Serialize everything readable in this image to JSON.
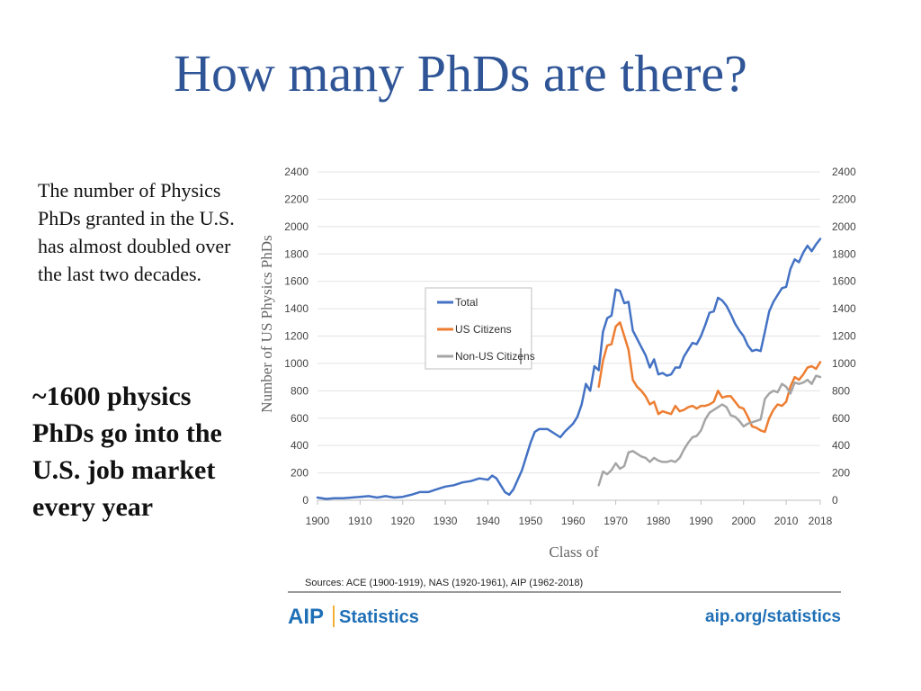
{
  "slide": {
    "title": "How many PhDs are there?",
    "intro": "The number of Physics PhDs granted in the U.S. has almost doubled over the last two decades.",
    "callout": "~1600 physics PhDs go into the U.S. job market every year"
  },
  "footer": {
    "sources": "Sources: ACE (1900-1919), NAS (1920-1961), AIP (1962-2018)",
    "logo_text": "AIP",
    "logo_suffix": "Statistics",
    "url": "aip.org/statistics"
  },
  "colors": {
    "title": "#2f5597",
    "total": "#4472c4",
    "us": "#ed7d31",
    "nonus": "#a5a5a5",
    "brand": "#1f6fb6"
  },
  "chart_data": {
    "type": "line",
    "xlabel": "Class of",
    "ylabel": "Number of US Physics PhDs",
    "xlim": [
      1900,
      2018
    ],
    "ylim": [
      0,
      2400
    ],
    "xticks": [
      "1900",
      "1910",
      "1920",
      "1930",
      "1940",
      "1950",
      "1960",
      "1970",
      "1980",
      "1990",
      "2000",
      "2010",
      "2018"
    ],
    "yticks": [
      "0",
      "200",
      "400",
      "600",
      "800",
      "1000",
      "1200",
      "1400",
      "1600",
      "1800",
      "2000",
      "2200",
      "2400"
    ],
    "grid": true,
    "legend_position": "upper-left-center",
    "series": [
      {
        "name": "Total",
        "color": "#4472c4",
        "points": [
          [
            1900,
            20
          ],
          [
            1902,
            10
          ],
          [
            1904,
            15
          ],
          [
            1906,
            15
          ],
          [
            1908,
            20
          ],
          [
            1910,
            25
          ],
          [
            1912,
            30
          ],
          [
            1914,
            20
          ],
          [
            1916,
            30
          ],
          [
            1918,
            20
          ],
          [
            1920,
            25
          ],
          [
            1922,
            40
          ],
          [
            1924,
            60
          ],
          [
            1926,
            60
          ],
          [
            1928,
            80
          ],
          [
            1930,
            100
          ],
          [
            1932,
            110
          ],
          [
            1934,
            130
          ],
          [
            1936,
            140
          ],
          [
            1938,
            160
          ],
          [
            1940,
            150
          ],
          [
            1941,
            180
          ],
          [
            1942,
            160
          ],
          [
            1943,
            110
          ],
          [
            1944,
            60
          ],
          [
            1945,
            40
          ],
          [
            1946,
            80
          ],
          [
            1948,
            220
          ],
          [
            1950,
            420
          ],
          [
            1951,
            500
          ],
          [
            1952,
            520
          ],
          [
            1954,
            520
          ],
          [
            1956,
            480
          ],
          [
            1957,
            460
          ],
          [
            1958,
            500
          ],
          [
            1960,
            560
          ],
          [
            1961,
            610
          ],
          [
            1962,
            700
          ],
          [
            1963,
            850
          ],
          [
            1964,
            800
          ],
          [
            1965,
            980
          ],
          [
            1966,
            950
          ],
          [
            1967,
            1230
          ],
          [
            1968,
            1330
          ],
          [
            1969,
            1350
          ],
          [
            1970,
            1540
          ],
          [
            1971,
            1530
          ],
          [
            1972,
            1440
          ],
          [
            1973,
            1450
          ],
          [
            1974,
            1240
          ],
          [
            1975,
            1180
          ],
          [
            1976,
            1120
          ],
          [
            1977,
            1060
          ],
          [
            1978,
            970
          ],
          [
            1979,
            1030
          ],
          [
            1980,
            920
          ],
          [
            1981,
            930
          ],
          [
            1982,
            910
          ],
          [
            1983,
            920
          ],
          [
            1984,
            970
          ],
          [
            1985,
            970
          ],
          [
            1986,
            1050
          ],
          [
            1987,
            1100
          ],
          [
            1988,
            1150
          ],
          [
            1989,
            1140
          ],
          [
            1990,
            1200
          ],
          [
            1991,
            1280
          ],
          [
            1992,
            1370
          ],
          [
            1993,
            1380
          ],
          [
            1994,
            1480
          ],
          [
            1995,
            1460
          ],
          [
            1996,
            1420
          ],
          [
            1997,
            1360
          ],
          [
            1998,
            1290
          ],
          [
            1999,
            1240
          ],
          [
            2000,
            1200
          ],
          [
            2001,
            1130
          ],
          [
            2002,
            1090
          ],
          [
            2003,
            1100
          ],
          [
            2004,
            1090
          ],
          [
            2005,
            1230
          ],
          [
            2006,
            1380
          ],
          [
            2007,
            1450
          ],
          [
            2008,
            1500
          ],
          [
            2009,
            1550
          ],
          [
            2010,
            1560
          ],
          [
            2011,
            1690
          ],
          [
            2012,
            1760
          ],
          [
            2013,
            1740
          ],
          [
            2014,
            1810
          ],
          [
            2015,
            1860
          ],
          [
            2016,
            1820
          ],
          [
            2017,
            1870
          ],
          [
            2018,
            1910
          ]
        ]
      },
      {
        "name": "US Citizens",
        "color": "#ed7d31",
        "points": [
          [
            1966,
            830
          ],
          [
            1967,
            1020
          ],
          [
            1968,
            1130
          ],
          [
            1969,
            1140
          ],
          [
            1970,
            1270
          ],
          [
            1971,
            1300
          ],
          [
            1972,
            1200
          ],
          [
            1973,
            1100
          ],
          [
            1974,
            880
          ],
          [
            1975,
            830
          ],
          [
            1976,
            800
          ],
          [
            1977,
            760
          ],
          [
            1978,
            700
          ],
          [
            1979,
            720
          ],
          [
            1980,
            630
          ],
          [
            1981,
            650
          ],
          [
            1982,
            640
          ],
          [
            1983,
            630
          ],
          [
            1984,
            690
          ],
          [
            1985,
            650
          ],
          [
            1986,
            660
          ],
          [
            1987,
            680
          ],
          [
            1988,
            690
          ],
          [
            1989,
            670
          ],
          [
            1990,
            690
          ],
          [
            1991,
            690
          ],
          [
            1992,
            700
          ],
          [
            1993,
            720
          ],
          [
            1994,
            800
          ],
          [
            1995,
            750
          ],
          [
            1996,
            760
          ],
          [
            1997,
            760
          ],
          [
            1998,
            720
          ],
          [
            1999,
            680
          ],
          [
            2000,
            670
          ],
          [
            2001,
            610
          ],
          [
            2002,
            540
          ],
          [
            2003,
            530
          ],
          [
            2004,
            510
          ],
          [
            2005,
            500
          ],
          [
            2006,
            600
          ],
          [
            2007,
            660
          ],
          [
            2008,
            700
          ],
          [
            2009,
            690
          ],
          [
            2010,
            720
          ],
          [
            2011,
            830
          ],
          [
            2012,
            900
          ],
          [
            2013,
            880
          ],
          [
            2014,
            920
          ],
          [
            2015,
            970
          ],
          [
            2016,
            980
          ],
          [
            2017,
            960
          ],
          [
            2018,
            1010
          ]
        ]
      },
      {
        "name": "Non-US Citizens",
        "color": "#a5a5a5",
        "points": [
          [
            1966,
            110
          ],
          [
            1967,
            210
          ],
          [
            1968,
            190
          ],
          [
            1969,
            220
          ],
          [
            1970,
            270
          ],
          [
            1971,
            230
          ],
          [
            1972,
            250
          ],
          [
            1973,
            350
          ],
          [
            1974,
            360
          ],
          [
            1975,
            340
          ],
          [
            1976,
            320
          ],
          [
            1977,
            310
          ],
          [
            1978,
            280
          ],
          [
            1979,
            310
          ],
          [
            1980,
            290
          ],
          [
            1981,
            280
          ],
          [
            1982,
            280
          ],
          [
            1983,
            290
          ],
          [
            1984,
            280
          ],
          [
            1985,
            310
          ],
          [
            1986,
            370
          ],
          [
            1987,
            420
          ],
          [
            1988,
            460
          ],
          [
            1989,
            470
          ],
          [
            1990,
            510
          ],
          [
            1991,
            590
          ],
          [
            1992,
            640
          ],
          [
            1993,
            660
          ],
          [
            1994,
            680
          ],
          [
            1995,
            700
          ],
          [
            1996,
            680
          ],
          [
            1997,
            620
          ],
          [
            1998,
            610
          ],
          [
            1999,
            580
          ],
          [
            2000,
            540
          ],
          [
            2001,
            560
          ],
          [
            2002,
            570
          ],
          [
            2003,
            580
          ],
          [
            2004,
            590
          ],
          [
            2005,
            740
          ],
          [
            2006,
            780
          ],
          [
            2007,
            800
          ],
          [
            2008,
            790
          ],
          [
            2009,
            850
          ],
          [
            2010,
            830
          ],
          [
            2011,
            780
          ],
          [
            2012,
            860
          ],
          [
            2013,
            850
          ],
          [
            2014,
            860
          ],
          [
            2015,
            880
          ],
          [
            2016,
            850
          ],
          [
            2017,
            910
          ],
          [
            2018,
            900
          ]
        ]
      }
    ]
  }
}
